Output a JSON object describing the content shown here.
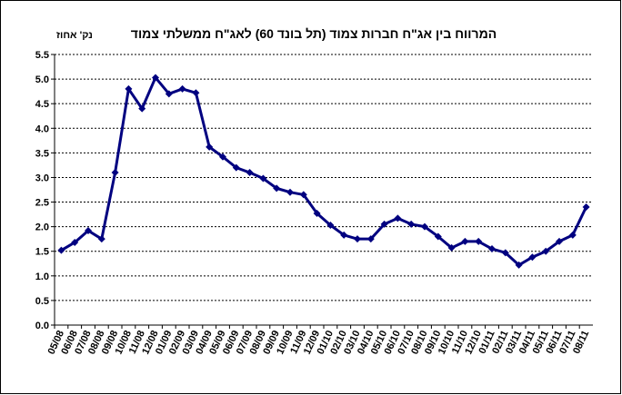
{
  "chart_data": {
    "type": "line",
    "title": "המרווח בין אג\"ח חברות צמוד (תל בונד 60) לאג\"ח ממשלתי צמוד",
    "y_label": "נק' אחוז",
    "categories": [
      "05/08",
      "06/08",
      "07/08",
      "08/08",
      "09/08",
      "10/08",
      "11/08",
      "12/08",
      "01/09",
      "02/09",
      "03/09",
      "04/09",
      "05/09",
      "06/09",
      "07/09",
      "08/09",
      "09/09",
      "10/09",
      "11/09",
      "12/09",
      "01/10",
      "02/10",
      "03/10",
      "04/10",
      "05/10",
      "06/10",
      "07/10",
      "08/10",
      "09/10",
      "10/10",
      "11/10",
      "12/10",
      "01/11",
      "02/11",
      "03/11",
      "04/11",
      "05/11",
      "06/11",
      "07/11",
      "08/11"
    ],
    "values": [
      1.52,
      1.68,
      1.92,
      1.75,
      3.1,
      4.8,
      4.4,
      5.03,
      4.7,
      4.8,
      4.72,
      3.62,
      3.42,
      3.2,
      3.1,
      2.98,
      2.78,
      2.7,
      2.65,
      2.27,
      2.03,
      1.83,
      1.75,
      1.75,
      2.05,
      2.17,
      2.05,
      2.0,
      1.8,
      1.57,
      1.7,
      1.7,
      1.55,
      1.47,
      1.22,
      1.38,
      1.5,
      1.7,
      1.83,
      2.4
    ],
    "color": "#000080",
    "ylim": [
      0,
      5.5
    ],
    "yticks": [
      {
        "value": 0,
        "label": "0.0"
      },
      0.5,
      {
        "value": 1,
        "label": "1.0"
      },
      1.5,
      {
        "value": 2,
        "label": "2.0"
      },
      2.5,
      {
        "value": 3,
        "label": "3.0"
      },
      3.5,
      {
        "value": 4,
        "label": "4.0"
      },
      4.5,
      {
        "value": 5,
        "label": "5.0"
      },
      5.5
    ],
    "grid": true
  }
}
